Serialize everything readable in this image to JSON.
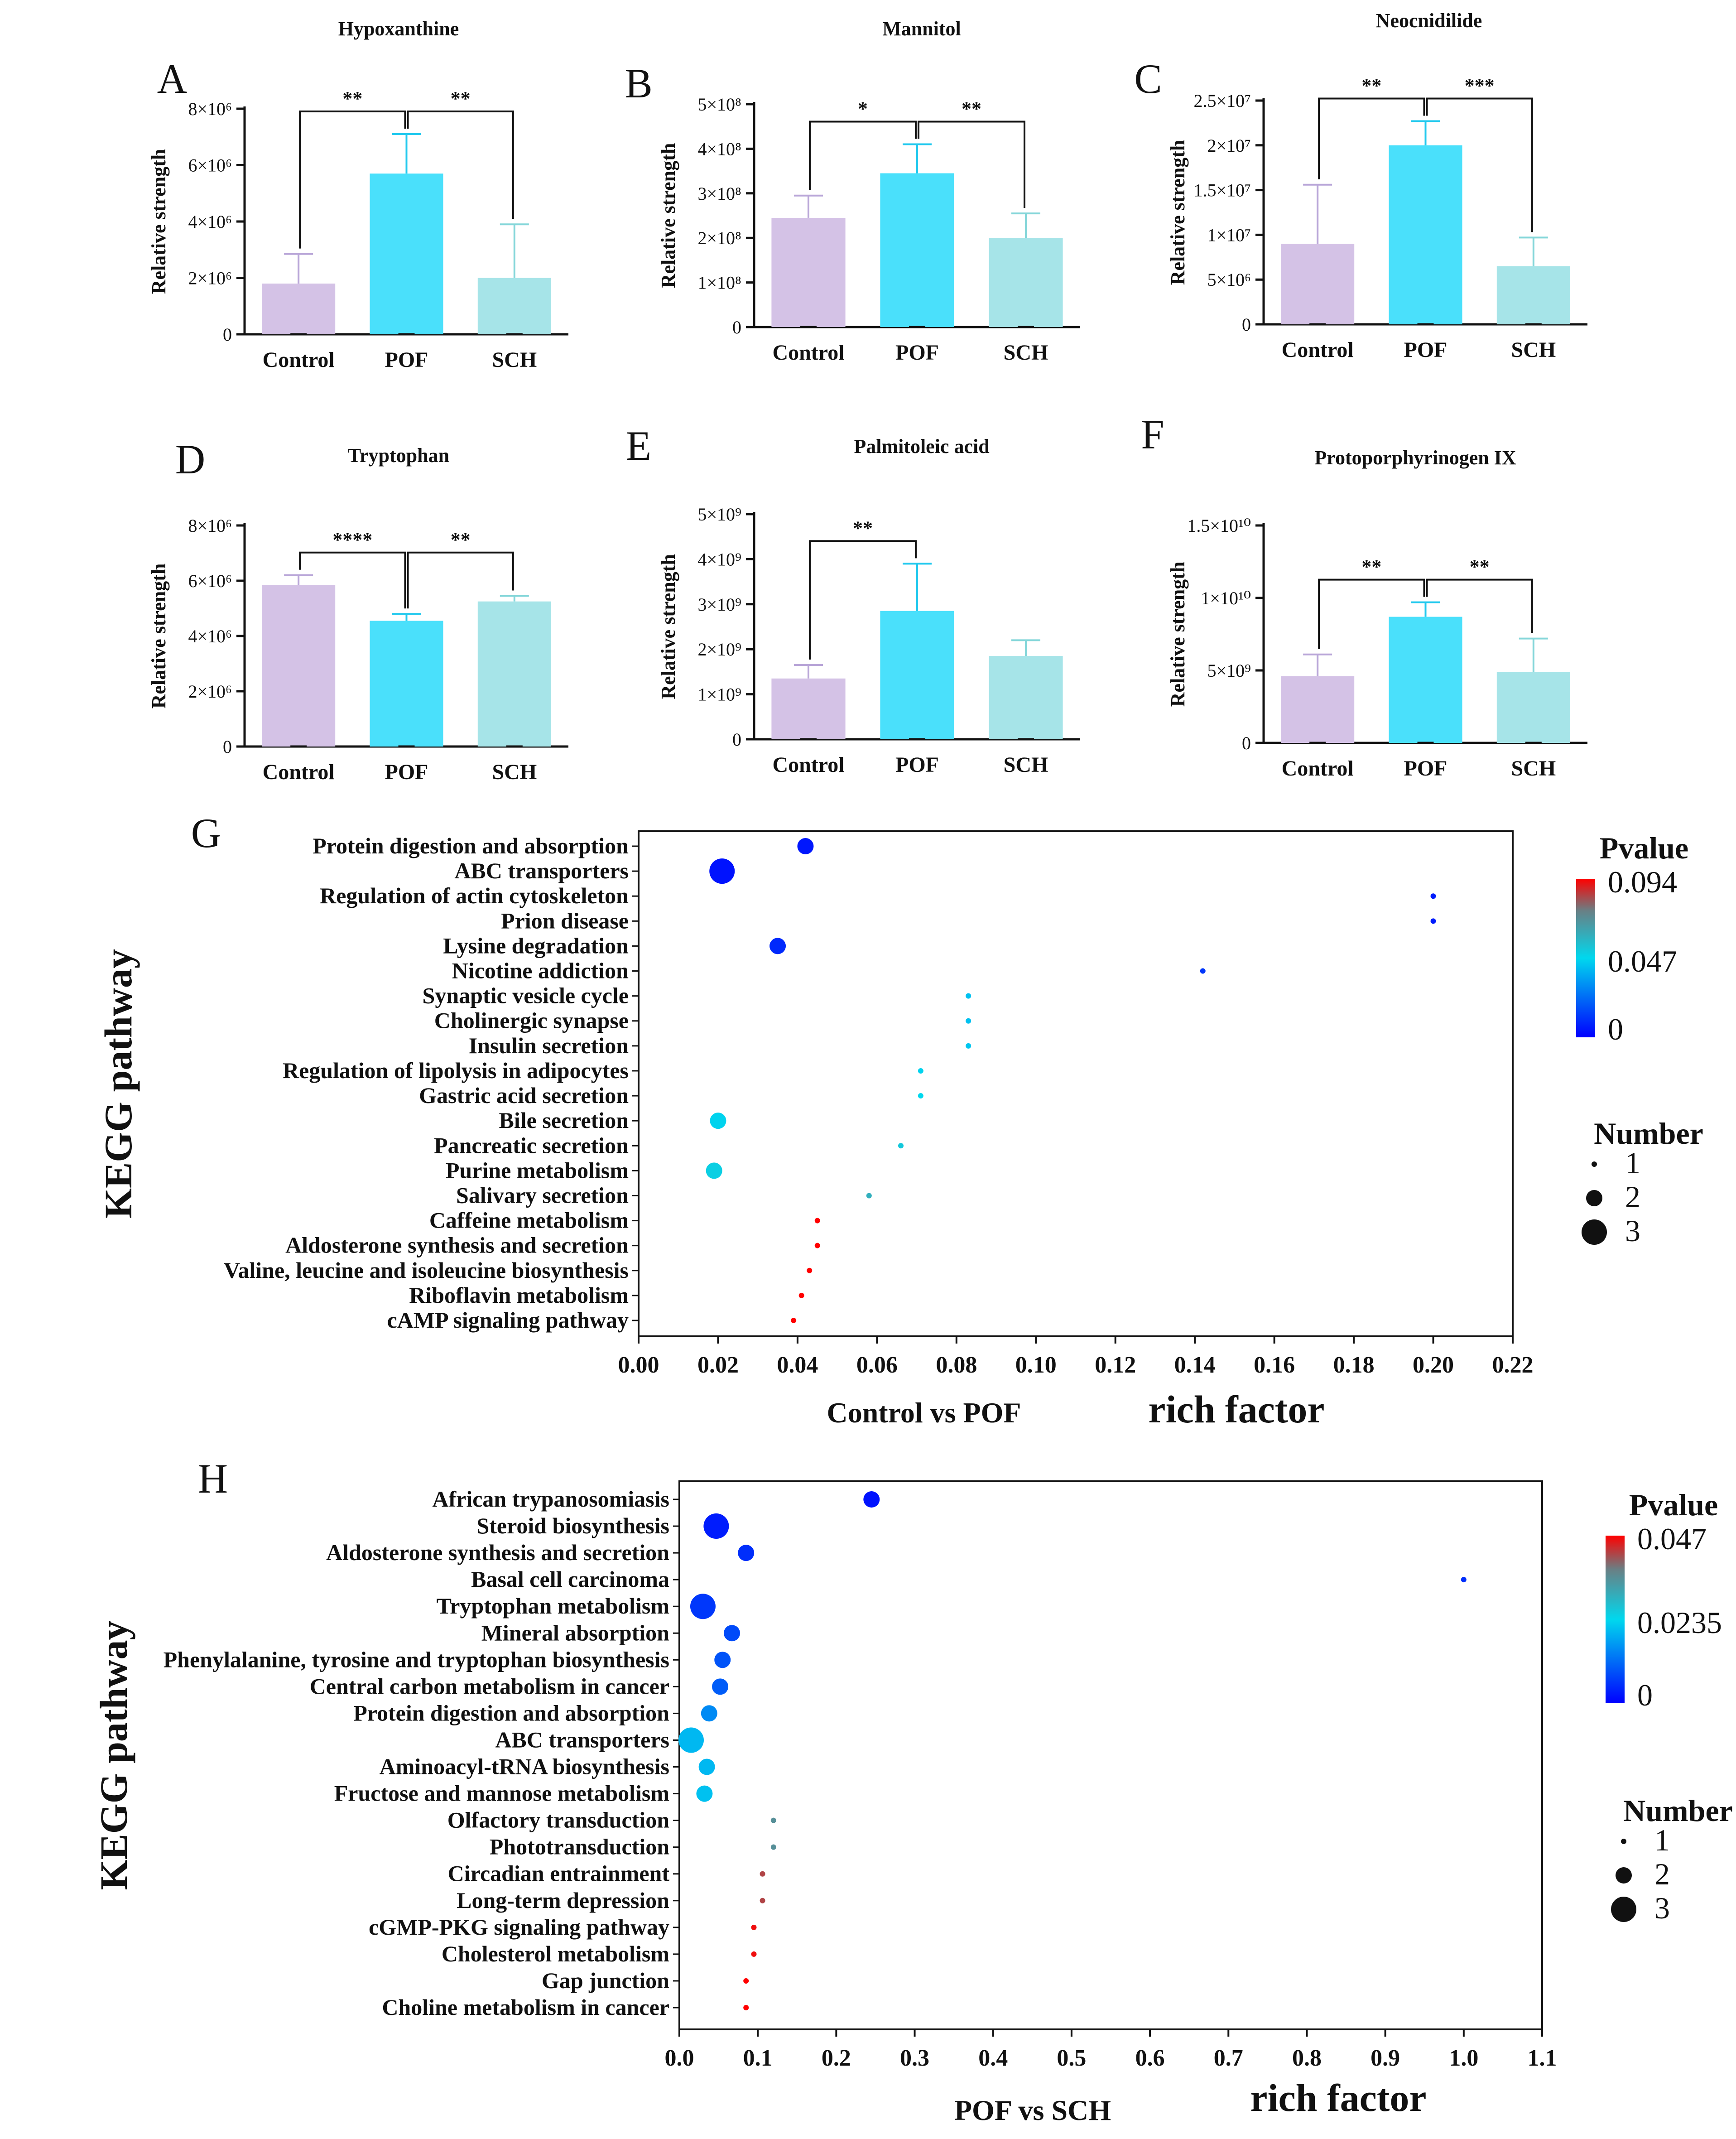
{
  "figure": {
    "panel_letters": [
      "A",
      "B",
      "C",
      "D",
      "E",
      "F",
      "G",
      "H"
    ]
  },
  "chart_data": [
    {
      "panel": "A",
      "type": "bar",
      "title": "Hypoxanthine",
      "ylabel": "Relative strength",
      "categories": [
        "Control",
        "POF",
        "SCH"
      ],
      "values": [
        1800000,
        5700000,
        2000000
      ],
      "errors": [
        1050000,
        1400000,
        1900000
      ],
      "ylim": [
        0,
        8000000
      ],
      "ticks": [
        0,
        2000000,
        4000000,
        6000000,
        8000000
      ],
      "tick_labels": [
        "0",
        "2×10⁶",
        "4×10⁶",
        "6×10⁶",
        "8×10⁶"
      ],
      "significance": [
        {
          "from": 0,
          "to": 1,
          "label": "**",
          "level": 1
        },
        {
          "from": 1,
          "to": 2,
          "label": "**",
          "level": 1
        }
      ]
    },
    {
      "panel": "B",
      "type": "bar",
      "title": "Mannitol",
      "ylabel": "Relative strength",
      "categories": [
        "Control",
        "POF",
        "SCH"
      ],
      "values": [
        245000000,
        345000000,
        200000000
      ],
      "errors": [
        50000000,
        65000000,
        55000000
      ],
      "ylim": [
        0,
        500000000
      ],
      "ticks": [
        0,
        100000000,
        200000000,
        300000000,
        400000000,
        500000000
      ],
      "tick_labels": [
        "0",
        "1×10⁸",
        "2×10⁸",
        "3×10⁸",
        "4×10⁸",
        "5×10⁸"
      ],
      "significance": [
        {
          "from": 0,
          "to": 1,
          "label": "*",
          "level": 1
        },
        {
          "from": 1,
          "to": 2,
          "label": "**",
          "level": 1
        }
      ]
    },
    {
      "panel": "C",
      "type": "bar",
      "title": "Neocnidilide",
      "ylabel": "Relative strength",
      "categories": [
        "Control",
        "POF",
        "SCH"
      ],
      "values": [
        9000000,
        20000000,
        6500000
      ],
      "errors": [
        6600000,
        2700000,
        3200000
      ],
      "ylim": [
        0,
        25000000
      ],
      "ticks": [
        0,
        5000000,
        10000000,
        15000000,
        20000000,
        25000000
      ],
      "tick_labels": [
        "0",
        "5×10⁶",
        "1×10⁷",
        "1.5×10⁷",
        "2×10⁷",
        "2.5×10⁷"
      ],
      "significance": [
        {
          "from": 0,
          "to": 1,
          "label": "**",
          "level": 1
        },
        {
          "from": 1,
          "to": 2,
          "label": "***",
          "level": 1
        }
      ]
    },
    {
      "panel": "D",
      "type": "bar",
      "title": "Tryptophan",
      "ylabel": "Relative strength",
      "categories": [
        "Control",
        "POF",
        "SCH"
      ],
      "values": [
        5850000,
        4550000,
        5250000
      ],
      "errors": [
        350000,
        250000,
        200000
      ],
      "ylim": [
        0,
        8000000
      ],
      "ticks": [
        0,
        2000000,
        4000000,
        6000000,
        8000000
      ],
      "tick_labels": [
        "0",
        "2×10⁶",
        "4×10⁶",
        "6×10⁶",
        "8×10⁶"
      ],
      "significance": [
        {
          "from": 0,
          "to": 1,
          "label": "****",
          "level": 1
        },
        {
          "from": 1,
          "to": 2,
          "label": "**",
          "level": 1
        }
      ]
    },
    {
      "panel": "E",
      "type": "bar",
      "title": "Palmitoleic acid",
      "ylabel": "Relative strength",
      "categories": [
        "Control",
        "POF",
        "SCH"
      ],
      "values": [
        1350000000,
        2850000000,
        1850000000
      ],
      "errors": [
        300000000,
        1050000000,
        350000000
      ],
      "ylim": [
        0,
        5000000000
      ],
      "ticks": [
        0,
        1000000000,
        2000000000,
        3000000000,
        4000000000,
        5000000000
      ],
      "tick_labels": [
        "0",
        "1×10⁹",
        "2×10⁹",
        "3×10⁹",
        "4×10⁹",
        "5×10⁹"
      ],
      "significance": [
        {
          "from": 0,
          "to": 1,
          "label": "**",
          "level": 1
        }
      ]
    },
    {
      "panel": "F",
      "type": "bar",
      "title": "Protoporphyrinogen IX",
      "ylabel": "Relative strength",
      "categories": [
        "Control",
        "POF",
        "SCH"
      ],
      "values": [
        4600000000,
        8700000000,
        4900000000
      ],
      "errors": [
        1500000000,
        1000000000,
        2300000000
      ],
      "ylim": [
        0,
        15000000000
      ],
      "ticks": [
        0,
        5000000000,
        10000000000,
        15000000000
      ],
      "tick_labels": [
        "0",
        "5×10⁹",
        "1×10¹⁰",
        "1.5×10¹⁰"
      ],
      "significance": [
        {
          "from": 0,
          "to": 1,
          "label": "**",
          "level": 1
        },
        {
          "from": 1,
          "to": 2,
          "label": "**",
          "level": 1
        }
      ]
    },
    {
      "panel": "G",
      "type": "scatter",
      "ylabel": "KEGG pathway",
      "xlabel": "rich factor",
      "comparison": "Control vs POF",
      "xlim": [
        0,
        0.22
      ],
      "xticks": [
        0.0,
        0.02,
        0.04,
        0.06,
        0.08,
        0.1,
        0.12,
        0.14,
        0.16,
        0.18,
        0.2,
        0.22
      ],
      "xtick_labels": [
        "0.00",
        "0.02",
        "0.04",
        "0.06",
        "0.08",
        "0.10",
        "0.12",
        "0.14",
        "0.16",
        "0.18",
        "0.20",
        "0.22"
      ],
      "color_legend": {
        "title": "Pvalue",
        "max": 0.094,
        "labels": [
          "0.094",
          "0.047",
          "0"
        ]
      },
      "size_legend": {
        "title": "Number",
        "labels": [
          "1",
          "2",
          "3"
        ]
      },
      "pathways": [
        {
          "name": "Protein digestion and absorption",
          "rich_factor": 0.042,
          "number": 2,
          "pvalue": 0.005
        },
        {
          "name": "ABC transporters",
          "rich_factor": 0.021,
          "number": 3,
          "pvalue": 0.004
        },
        {
          "name": "Regulation of actin cytoskeleton",
          "rich_factor": 0.2,
          "number": 1,
          "pvalue": 0.006
        },
        {
          "name": "Prion disease",
          "rich_factor": 0.2,
          "number": 1,
          "pvalue": 0.006
        },
        {
          "name": "Lysine degradation",
          "rich_factor": 0.035,
          "number": 2,
          "pvalue": 0.009
        },
        {
          "name": "Nicotine addiction",
          "rich_factor": 0.142,
          "number": 1,
          "pvalue": 0.012
        },
        {
          "name": "Synaptic vesicle cycle",
          "rich_factor": 0.083,
          "number": 1,
          "pvalue": 0.042
        },
        {
          "name": "Cholinergic synapse",
          "rich_factor": 0.083,
          "number": 1,
          "pvalue": 0.042
        },
        {
          "name": "Insulin secretion",
          "rich_factor": 0.083,
          "number": 1,
          "pvalue": 0.043
        },
        {
          "name": "Regulation of lipolysis in adipocytes",
          "rich_factor": 0.071,
          "number": 1,
          "pvalue": 0.046
        },
        {
          "name": "Gastric acid secretion",
          "rich_factor": 0.071,
          "number": 1,
          "pvalue": 0.047
        },
        {
          "name": "Bile secretion",
          "rich_factor": 0.02,
          "number": 2,
          "pvalue": 0.046
        },
        {
          "name": "Pancreatic secretion",
          "rich_factor": 0.066,
          "number": 1,
          "pvalue": 0.052
        },
        {
          "name": "Purine metabolism",
          "rich_factor": 0.019,
          "number": 2,
          "pvalue": 0.05
        },
        {
          "name": "Salivary secretion",
          "rich_factor": 0.058,
          "number": 1,
          "pvalue": 0.06
        },
        {
          "name": "Caffeine metabolism",
          "rich_factor": 0.045,
          "number": 1,
          "pvalue": 0.094
        },
        {
          "name": "Aldosterone synthesis and secretion",
          "rich_factor": 0.045,
          "number": 1,
          "pvalue": 0.094
        },
        {
          "name": "Valine, leucine and isoleucine biosynthesis",
          "rich_factor": 0.043,
          "number": 1,
          "pvalue": 0.094
        },
        {
          "name": "Riboflavin metabolism",
          "rich_factor": 0.041,
          "number": 1,
          "pvalue": 0.094
        },
        {
          "name": "cAMP signaling pathway",
          "rich_factor": 0.039,
          "number": 1,
          "pvalue": 0.094
        }
      ]
    },
    {
      "panel": "H",
      "type": "scatter",
      "ylabel": "KEGG pathway",
      "xlabel": "rich factor",
      "comparison": "POF vs SCH",
      "xlim": [
        0,
        1.1
      ],
      "xticks": [
        0.0,
        0.1,
        0.2,
        0.3,
        0.4,
        0.5,
        0.6,
        0.7,
        0.8,
        0.9,
        1.0,
        1.1
      ],
      "xtick_labels": [
        "0.0",
        "0.1",
        "0.2",
        "0.3",
        "0.4",
        "0.5",
        "0.6",
        "0.7",
        "0.8",
        "0.9",
        "1.0",
        "1.1"
      ],
      "color_legend": {
        "title": "Pvalue",
        "max": 0.047,
        "labels": [
          "0.047",
          "0.0235",
          "0"
        ]
      },
      "size_legend": {
        "title": "Number",
        "labels": [
          "1",
          "2",
          "3"
        ]
      },
      "pathways": [
        {
          "name": "African trypanosomiasis",
          "rich_factor": 0.245,
          "number": 2,
          "pvalue": 0.002
        },
        {
          "name": "Steroid biosynthesis",
          "rich_factor": 0.047,
          "number": 3,
          "pvalue": 0.003
        },
        {
          "name": "Aldosterone synthesis and secretion",
          "rich_factor": 0.085,
          "number": 2,
          "pvalue": 0.005
        },
        {
          "name": "Basal cell carcinoma",
          "rich_factor": 1.0,
          "number": 1,
          "pvalue": 0.005
        },
        {
          "name": "Tryptophan metabolism",
          "rich_factor": 0.03,
          "number": 3,
          "pvalue": 0.006
        },
        {
          "name": "Mineral absorption",
          "rich_factor": 0.067,
          "number": 2,
          "pvalue": 0.008
        },
        {
          "name": "Phenylalanine, tyrosine and tryptophan biosynthesis",
          "rich_factor": 0.055,
          "number": 2,
          "pvalue": 0.009
        },
        {
          "name": "Central carbon metabolism in cancer",
          "rich_factor": 0.052,
          "number": 2,
          "pvalue": 0.01
        },
        {
          "name": "Protein digestion and absorption",
          "rich_factor": 0.038,
          "number": 2,
          "pvalue": 0.015
        },
        {
          "name": "ABC transporters",
          "rich_factor": 0.015,
          "number": 3,
          "pvalue": 0.02
        },
        {
          "name": "Aminoacyl-tRNA biosynthesis",
          "rich_factor": 0.035,
          "number": 2,
          "pvalue": 0.02
        },
        {
          "name": "Fructose and mannose metabolism",
          "rich_factor": 0.032,
          "number": 2,
          "pvalue": 0.021
        },
        {
          "name": "Olfactory transduction",
          "rich_factor": 0.12,
          "number": 1,
          "pvalue": 0.035
        },
        {
          "name": "Phototransduction",
          "rich_factor": 0.12,
          "number": 1,
          "pvalue": 0.035
        },
        {
          "name": "Circadian entrainment",
          "rich_factor": 0.106,
          "number": 1,
          "pvalue": 0.042
        },
        {
          "name": "Long-term depression",
          "rich_factor": 0.106,
          "number": 1,
          "pvalue": 0.042
        },
        {
          "name": "cGMP-PKG signaling pathway",
          "rich_factor": 0.095,
          "number": 1,
          "pvalue": 0.046
        },
        {
          "name": "Cholesterol metabolism",
          "rich_factor": 0.095,
          "number": 1,
          "pvalue": 0.046
        },
        {
          "name": "Gap junction",
          "rich_factor": 0.085,
          "number": 1,
          "pvalue": 0.047
        },
        {
          "name": "Choline metabolism in cancer",
          "rich_factor": 0.085,
          "number": 1,
          "pvalue": 0.047
        }
      ]
    }
  ]
}
